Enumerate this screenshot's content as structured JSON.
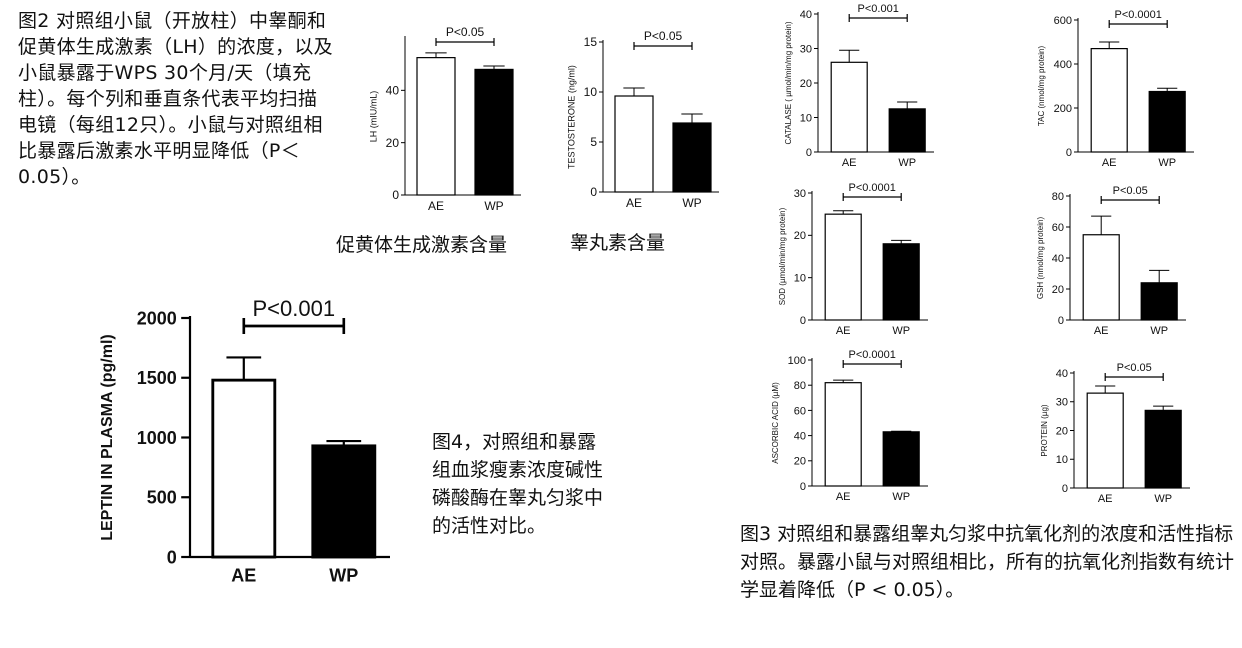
{
  "fig2_caption": "图2 对照组小鼠（开放柱）中睾酮和促黄体生成激素（LH）的浓度，以及小鼠暴露于WPS 30个月/天（填充柱）。每个列和垂直条代表平均扫描电镜（每组12只）。小鼠与对照组相比暴露后激素水平明显降低（P＜0.05）。",
  "fig4_caption": "图4，对照组和暴露组血浆瘦素浓度碱性磷酸酶在睾丸匀浆中的活性对比。",
  "fig3_caption": "图3 对照组和暴露组睾丸匀浆中抗氧化剂的浓度和活性指标对照。暴露小鼠与对照组相比，所有的抗氧化剂指数有统计学显着降低（P < 0.05）。",
  "sub_labels": {
    "lh": "促黄体生成激素含量",
    "testosterone": "睾丸素含量"
  },
  "colors": {
    "ae_fill": "#ffffff",
    "wp_fill": "#000000",
    "axis": "#000000"
  },
  "chart_data": [
    {
      "id": "lh",
      "type": "bar",
      "categories": [
        "AE",
        "WP"
      ],
      "values": [
        52.5,
        48
      ],
      "errors": [
        1.8,
        1.3
      ],
      "ylabel": "LH (mIU/mL)",
      "ylim": [
        0,
        60
      ],
      "yticks": [
        0,
        20,
        40
      ],
      "annotation": "P<0.05"
    },
    {
      "id": "testosterone",
      "type": "bar",
      "categories": [
        "AE",
        "WP"
      ],
      "values": [
        9.6,
        6.9
      ],
      "errors": [
        0.8,
        0.9
      ],
      "ylabel": "TESTOSTERONE (ng/ml)",
      "ylim": [
        0,
        15
      ],
      "yticks": [
        0,
        5,
        10,
        15
      ],
      "annotation": "P<0.05"
    },
    {
      "id": "catalase",
      "type": "bar",
      "categories": [
        "AE",
        "WP"
      ],
      "values": [
        26,
        12.5
      ],
      "errors": [
        3.5,
        2
      ],
      "ylabel": "CATALASE ( µmol/min/mg protein)",
      "ylim": [
        0,
        40
      ],
      "yticks": [
        0,
        10,
        20,
        30,
        40
      ],
      "annotation": "P<0.001"
    },
    {
      "id": "tac",
      "type": "bar",
      "categories": [
        "AE",
        "WP"
      ],
      "values": [
        470,
        275
      ],
      "errors": [
        30,
        15
      ],
      "ylabel": "TAC (nmol/mg protein)",
      "ylim": [
        0,
        600
      ],
      "yticks": [
        0,
        200,
        400,
        600
      ],
      "annotation": "P<0.0001"
    },
    {
      "id": "sod",
      "type": "bar",
      "categories": [
        "AE",
        "WP"
      ],
      "values": [
        25,
        18
      ],
      "errors": [
        0.8,
        0.8
      ],
      "ylabel": "SOD (µmol/min/mg protein)",
      "ylim": [
        0,
        30
      ],
      "yticks": [
        0,
        10,
        20,
        30
      ],
      "annotation": "P<0.0001"
    },
    {
      "id": "gsh",
      "type": "bar",
      "categories": [
        "AE",
        "WP"
      ],
      "values": [
        55,
        24
      ],
      "errors": [
        12,
        8
      ],
      "ylabel": "GSH (nmol/mg protein)",
      "ylim": [
        0,
        80
      ],
      "yticks": [
        0,
        20,
        40,
        60,
        80
      ],
      "annotation": "P<0.05"
    },
    {
      "id": "ascorbic",
      "type": "bar",
      "categories": [
        "AE",
        "WP"
      ],
      "values": [
        82,
        43
      ],
      "errors": [
        2,
        0.5
      ],
      "ylabel": "ASCORBIC ACID (µM)",
      "ylim": [
        0,
        100
      ],
      "yticks": [
        0,
        20,
        40,
        60,
        80,
        100
      ],
      "annotation": "P<0.0001"
    },
    {
      "id": "protein",
      "type": "bar",
      "categories": [
        "AE",
        "WP"
      ],
      "values": [
        33,
        27
      ],
      "errors": [
        2.5,
        1.5
      ],
      "ylabel": "PROTEIN (µg)",
      "ylim": [
        0,
        40
      ],
      "yticks": [
        0,
        10,
        20,
        30,
        40
      ],
      "annotation": "P<0.05"
    },
    {
      "id": "leptin",
      "type": "bar",
      "categories": [
        "AE",
        "WP"
      ],
      "values": [
        1480,
        930
      ],
      "errors": [
        190,
        40
      ],
      "ylabel": "LEPTIN IN PLASMA (pg/ml)",
      "ylim": [
        0,
        2000
      ],
      "yticks": [
        0,
        500,
        1000,
        1500,
        2000
      ],
      "annotation": "P<0.001"
    }
  ]
}
